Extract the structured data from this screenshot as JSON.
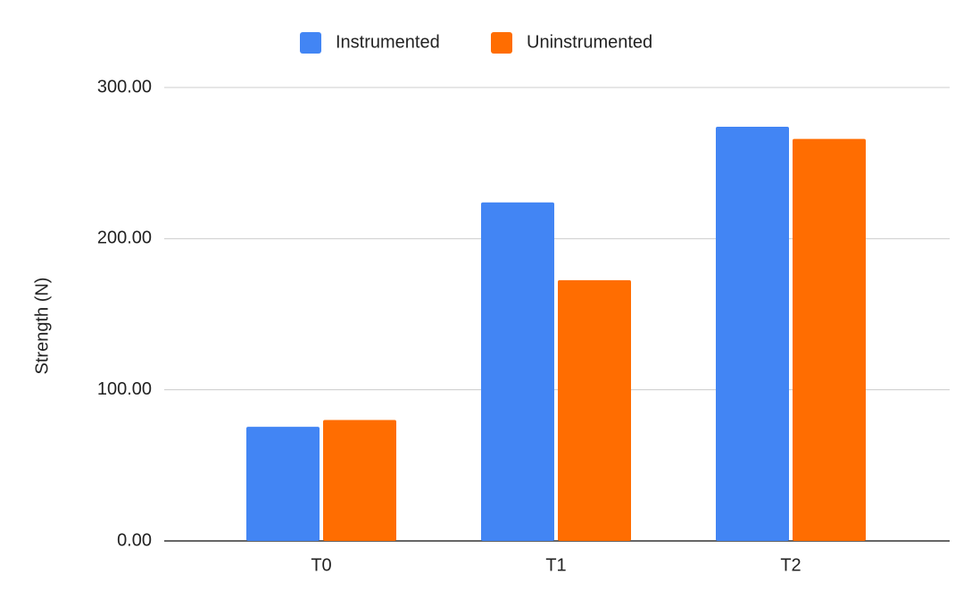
{
  "chart_data": {
    "type": "bar",
    "categories": [
      "T0",
      "T1",
      "T2"
    ],
    "series": [
      {
        "name": "Instrumented",
        "color": "#4285f4",
        "values": [
          75.5,
          224,
          274
        ]
      },
      {
        "name": "Uninstrumented",
        "color": "#ff6d01",
        "values": [
          80,
          172.5,
          266
        ]
      }
    ],
    "y_label": "Strength (N)",
    "ylim": [
      0,
      300
    ],
    "yticks": [
      {
        "value": 0,
        "label": "0.00"
      },
      {
        "value": 100,
        "label": "100.00"
      },
      {
        "value": 200,
        "label": "200.00"
      },
      {
        "value": 300,
        "label": "300.00"
      }
    ],
    "grid": true,
    "legend": "top"
  }
}
